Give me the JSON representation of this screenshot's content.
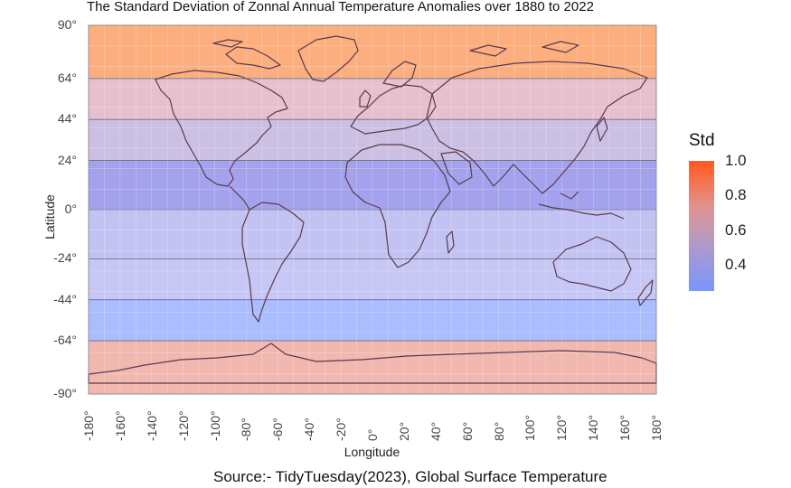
{
  "title": "The Standard Deviation of Zonnal Annual Temperature Anomalies over 1880 to 2022",
  "source": "Source:- TidyTuesday(2023), Global Surface Temperature",
  "chart_data": {
    "type": "heatmap",
    "title": "The Standard Deviation of Zonnal Annual Temperature Anomalies over 1880 to 2022",
    "xlabel": "Longitude",
    "ylabel": "Latitude",
    "xlim": [
      -180,
      180
    ],
    "ylim": [
      -90,
      90
    ],
    "x_ticks": [
      "-180°",
      "-160°",
      "-140°",
      "-120°",
      "-100°",
      "-80°",
      "-60°",
      "-40°",
      "-20°",
      "0°",
      "20°",
      "40°",
      "60°",
      "80°",
      "100°",
      "120°",
      "140°",
      "160°",
      "180°"
    ],
    "y_ticks": [
      {
        "value": 90,
        "label": "90°"
      },
      {
        "value": 64,
        "label": "64°"
      },
      {
        "value": 44,
        "label": "44°"
      },
      {
        "value": 24,
        "label": "24°"
      },
      {
        "value": 0,
        "label": "0°"
      },
      {
        "value": -24,
        "label": "-24°"
      },
      {
        "value": -44,
        "label": "-44°"
      },
      {
        "value": -64,
        "label": "-64°"
      },
      {
        "value": -90,
        "label": "-90°"
      }
    ],
    "zones": [
      {
        "lat_min": 64,
        "lat_max": 90,
        "std": 0.95,
        "color": "#fdae7e"
      },
      {
        "lat_min": 44,
        "lat_max": 64,
        "std": 0.55,
        "color": "#e6c0cc"
      },
      {
        "lat_min": 24,
        "lat_max": 44,
        "std": 0.42,
        "color": "#cbc0e4"
      },
      {
        "lat_min": 0,
        "lat_max": 24,
        "std": 0.32,
        "color": "#a4a2ec"
      },
      {
        "lat_min": -24,
        "lat_max": 0,
        "std": 0.35,
        "color": "#c2c3f2"
      },
      {
        "lat_min": -44,
        "lat_max": -24,
        "std": 0.36,
        "color": "#c6c7f4"
      },
      {
        "lat_min": -64,
        "lat_max": -44,
        "std": 0.28,
        "color": "#abbcff"
      },
      {
        "lat_min": -90,
        "lat_max": -64,
        "std": 0.75,
        "color": "#f1b8b0"
      }
    ],
    "legend": {
      "title": "Std",
      "position": "right",
      "ticks": [
        "1.0",
        "0.8",
        "0.6",
        "0.4"
      ],
      "range": [
        0.25,
        1.0
      ],
      "colors": [
        "#ff5a1e",
        "#7b96ff"
      ]
    },
    "grid": true,
    "outline_color": "#5a3a4e"
  }
}
